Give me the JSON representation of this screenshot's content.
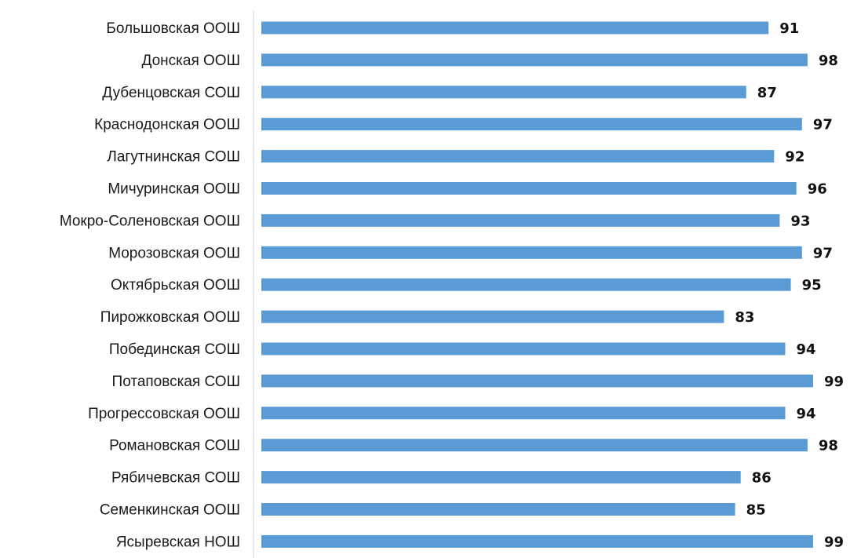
{
  "chart_data": {
    "type": "bar",
    "orientation": "horizontal",
    "title": "",
    "xlabel": "",
    "ylabel": "",
    "categories": [
      "Большовская ООШ",
      "Донская ООШ",
      "Дубенцовская СОШ",
      "Краснодонская ООШ",
      "Лагутнинская СОШ",
      "Мичуринская ООШ",
      "Мокро-Соленовская ООШ",
      "Морозовская ООШ",
      "Октябрьская ООШ",
      "Пирожковская ООШ",
      "Побединская СОШ",
      "Потаповская СОШ",
      "Прогрессовская ООШ",
      "Романовская СОШ",
      "Рябичевская СОШ",
      "Семенкинская ООШ",
      "Ясыревская НОШ"
    ],
    "values": [
      91,
      98,
      87,
      97,
      92,
      96,
      93,
      97,
      95,
      83,
      94,
      99,
      94,
      98,
      86,
      85,
      99
    ],
    "xlim": [
      0,
      100
    ],
    "grid": false,
    "legend": "none",
    "data_labels": true,
    "bar_color": "#5b9bd5",
    "axis_color": "#d0d0d0"
  }
}
